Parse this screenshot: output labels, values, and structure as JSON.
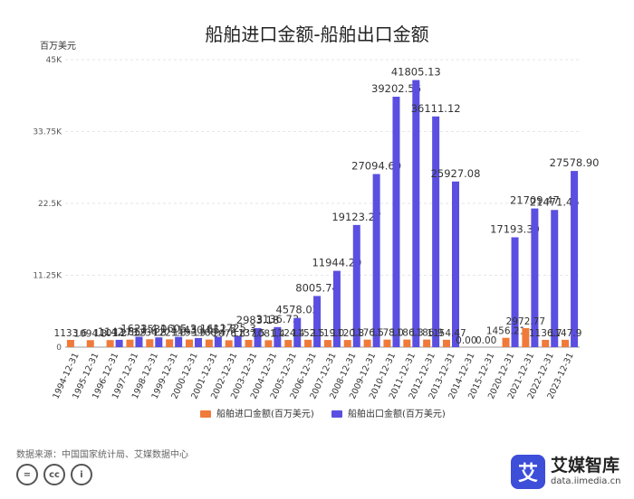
{
  "chart_data": {
    "type": "bar",
    "title": "船舶进口金额-船舶出口金额",
    "ylabel": "百万美元",
    "ylim": [
      0,
      45000
    ],
    "yticks": [
      0,
      11250,
      22500,
      33750,
      45000
    ],
    "ytick_labels": [
      "0",
      "11.25K",
      "22.5K",
      "33.75K",
      "45K"
    ],
    "categories": [
      "1994-12-31",
      "1995-12-31",
      "1996-12-31",
      "1997-12-31",
      "1998-12-31",
      "1999-12-31",
      "2000-12-31",
      "2001-12-31",
      "2002-12-31",
      "2003-12-31",
      "2004-12-31",
      "2005-12-31",
      "2006-12-31",
      "2007-12-31",
      "2008-12-31",
      "2009-12-31",
      "2010-12-31",
      "2011-12-31",
      "2012-12-31",
      "2013-12-31",
      "2014-12-31",
      "2015-12-31",
      "2020-12-31",
      "2021-12-31",
      "2022-12-31",
      "2023-12-31"
    ],
    "series": [
      {
        "name": "船舶进口金额(百万美元)",
        "color": "#f07a3a",
        "values": [
          1133.6,
          1094.3,
          1101.2,
          1173.9,
          1234.8,
          1221.8,
          1193.9,
          1188.4,
          1076.8,
          1137.5,
          1081.4,
          1124.4,
          1152.5,
          1119.0,
          1120.8,
          1176.5,
          1178.0,
          1186.3,
          1186.9,
          1154.5,
          0,
          0,
          1456.2,
          2972.8,
          1136.7,
          1147.9
        ],
        "labels": [
          "1133.6",
          "1094.3",
          "1101.2",
          "1173.9",
          "1234.8",
          "1221.8",
          "1193.9",
          "1188.4",
          "1076.8",
          "1137.5",
          "1081.4",
          "1124.4",
          "1152.5",
          "1119.0",
          "1120.8",
          "1176.5",
          "1178.0",
          "1186.3",
          "1186.9",
          "1154.47",
          "0.00",
          "0.00",
          "1456.21",
          "2972.77",
          "1136.7",
          "1147.9"
        ]
      },
      {
        "name": "船舶出口金额(百万美元)",
        "color": "#5a4fe0",
        "values": [
          null,
          null,
          1142.65,
          1623.4,
          1530.1,
          1605.3,
          1430.65,
          1612.8,
          1725.3,
          2983.18,
          3136.73,
          4578.02,
          8005.74,
          11944.29,
          19123.27,
          27094.6,
          39202.56,
          41805.13,
          36111.12,
          25927.08,
          0,
          0,
          17193.39,
          21709.47,
          21471.45,
          27578.9
        ],
        "labels": [
          "",
          "",
          "1142.65",
          "1623.4",
          "1530.1",
          "1605.3",
          "1430.65",
          "1612.8",
          "1725.3",
          "2983.18",
          "3136.73",
          "4578.02",
          "8005.74",
          "11944.29",
          "19123.27",
          "27094.60",
          "39202.56",
          "41805.13",
          "36111.12",
          "25927.08",
          "",
          "",
          "17193.39",
          "21709.47",
          "21471.45",
          "27578.90"
        ]
      }
    ],
    "legend": "bottom"
  },
  "source": "数据来源：中国国家统计局、艾媒数据中心",
  "brand": {
    "logo": "艾",
    "name": "艾媒智库",
    "url": "data.iimedia.cn"
  },
  "license": {
    "cc1": "=",
    "cc2": "cc",
    "cc3": "i"
  }
}
